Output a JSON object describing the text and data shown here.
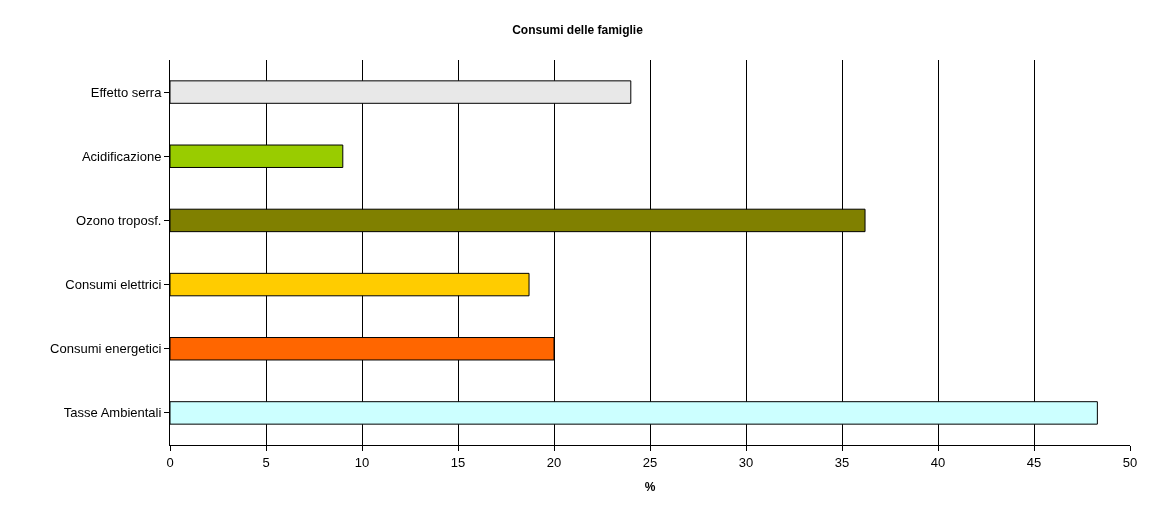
{
  "chart_data": {
    "type": "bar",
    "orientation": "horizontal",
    "title": "Consumi delle famiglie",
    "xlabel": "%",
    "categories": [
      "Effetto serra",
      "Acidificazione",
      "Ozono troposf.",
      "Consumi elettrici",
      "Consumi energetici",
      "Tasse Ambientali"
    ],
    "values": [
      24,
      9,
      36.2,
      18.7,
      20,
      48.3
    ],
    "colors": [
      "#e8e8e8",
      "#99cc00",
      "#808000",
      "#ffcc00",
      "#ff6600",
      "#ccffff"
    ],
    "xlim": [
      0,
      50
    ],
    "xticks": [
      0,
      5,
      10,
      15,
      20,
      25,
      30,
      35,
      40,
      45,
      50
    ],
    "grid": "x"
  }
}
